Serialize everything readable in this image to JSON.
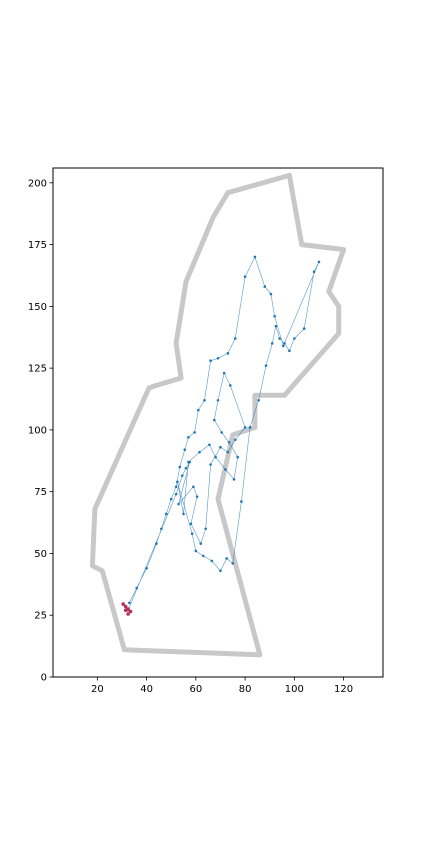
{
  "chart_data": {
    "type": "scatter",
    "title": "",
    "xlabel": "",
    "ylabel": "",
    "xlim": [
      2,
      136
    ],
    "ylim": [
      0,
      206
    ],
    "xticks": [
      20,
      40,
      60,
      80,
      100,
      120
    ],
    "yticks": [
      0,
      25,
      50,
      75,
      100,
      125,
      150,
      175,
      200
    ],
    "grid": false,
    "legend": "none",
    "colors": {
      "trajectory": "#1f77b4",
      "map": "#c8c8c8",
      "start": "#b5305c"
    },
    "map_outline": [
      [
        31,
        11
      ],
      [
        86,
        9
      ],
      [
        69,
        72
      ],
      [
        75,
        98
      ],
      [
        84,
        101
      ],
      [
        84,
        114
      ],
      [
        96,
        114
      ],
      [
        118,
        139
      ],
      [
        118,
        150
      ],
      [
        114,
        156
      ],
      [
        120,
        173
      ],
      [
        103,
        175
      ],
      [
        98,
        203
      ],
      [
        73,
        196
      ],
      [
        67,
        186
      ],
      [
        56,
        160
      ],
      [
        52,
        135
      ],
      [
        54,
        121
      ],
      [
        44,
        118
      ],
      [
        41,
        117
      ],
      [
        19,
        68
      ],
      [
        18,
        45
      ],
      [
        22,
        43
      ]
    ],
    "series": [
      {
        "x": [
          32.5,
          52.0,
          54.5,
          56.0,
          57.5,
          53.0,
          59.0,
          60.5,
          58.0,
          62.0,
          64.0,
          66.0,
          70.0,
          73.0,
          76.0,
          80.0,
          74.0,
          71.5,
          69.0,
          67.5,
          70.5,
          73.5,
          77.0,
          75.5,
          72.0,
          68.0,
          65.5,
          61.5,
          57.0,
          55.0,
          52.5,
          58.5,
          60.0,
          63.0,
          66.5,
          70.0,
          72.5,
          75.0,
          78.5,
          82.0,
          85.5,
          88.5,
          91.0,
          92.5,
          94.0,
          96.0,
          98.0,
          100.0,
          104.0,
          108.0,
          110.0,
          95.5,
          92.0,
          90.5,
          88.0,
          84.0,
          80.0,
          76.0,
          73.0,
          69.0,
          66.0,
          63.5,
          61.0,
          59.5,
          57.0,
          55.5,
          53.5,
          52.0,
          50.0,
          48.0,
          46.0,
          44.0,
          40.0,
          36.0,
          33.0
        ],
        "y": [
          27.0,
          74.0,
          81.5,
          84.5,
          87.0,
          70.0,
          77.0,
          73.0,
          62.0,
          54.0,
          60.0,
          86.0,
          93.0,
          91.0,
          96.0,
          101.0,
          118.0,
          123.0,
          112.0,
          104.0,
          99.0,
          95.0,
          89.0,
          80.0,
          84.0,
          89.0,
          94.0,
          91.0,
          87.0,
          66.0,
          79.0,
          58.0,
          51.0,
          49.0,
          47.0,
          43.0,
          48.0,
          46.0,
          71.0,
          101.0,
          112.0,
          126.0,
          135.0,
          142.0,
          137.0,
          135.0,
          132.0,
          137.0,
          141.0,
          164.0,
          168.0,
          134.0,
          146.0,
          155.0,
          158.0,
          170.0,
          162.0,
          137.0,
          131.0,
          129.0,
          128.0,
          112.0,
          108.0,
          99.0,
          97.0,
          92.0,
          85.0,
          77.0,
          72.0,
          66.0,
          60.0,
          54.0,
          44.0,
          36.0,
          30.0
        ]
      },
      {
        "x": [
          30.5,
          31.5,
          32.5,
          33.5,
          32.5,
          31.5
        ],
        "y": [
          29.5,
          28.5,
          27.5,
          26.5,
          25.5,
          27.0
        ]
      }
    ]
  }
}
